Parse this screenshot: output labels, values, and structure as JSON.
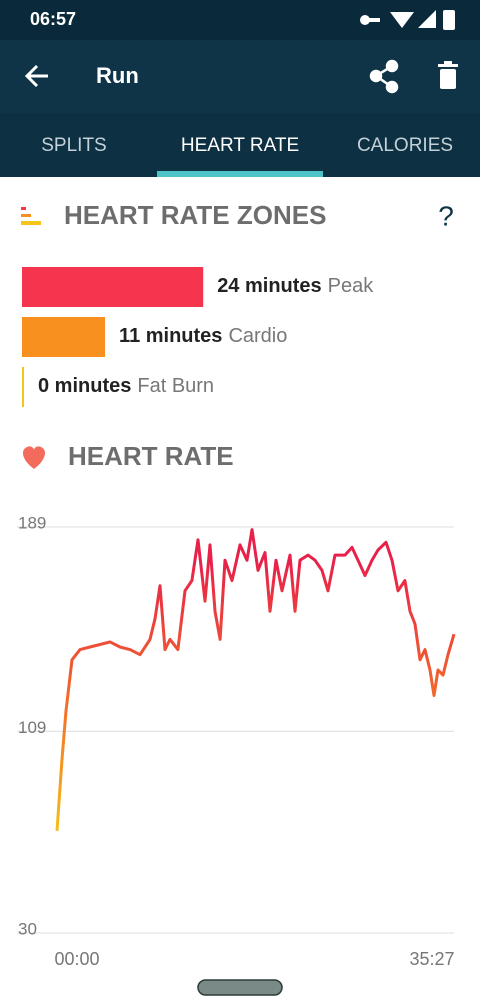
{
  "status_bar": {
    "time": "06:57"
  },
  "app_bar": {
    "title": "Run"
  },
  "tabs": [
    "SPLITS",
    "HEART RATE",
    "CALORIES"
  ],
  "zones": {
    "title": "HEART RATE ZONES",
    "help": "?",
    "items": [
      {
        "minutes": 24,
        "minutes_label": "24 minutes",
        "name": "Peak",
        "color": "#f5344e"
      },
      {
        "minutes": 11,
        "minutes_label": "11 minutes",
        "name": "Cardio",
        "color": "#f7901e"
      },
      {
        "minutes": 0,
        "minutes_label": "0 minutes",
        "name": "Fat Burn",
        "color": "#f5c518"
      }
    ]
  },
  "chart_data": {
    "type": "line",
    "title": "HEART RATE",
    "x": [
      0,
      0.45,
      0.8,
      1.34,
      2.05,
      2.95,
      3.84,
      4.73,
      5.63,
      6.52,
      7.41,
      8.3,
      8.75,
      9.2,
      9.64,
      10.09,
      10.8,
      11.43,
      12.05,
      12.59,
      13.22,
      13.66,
      14.11,
      14.56,
      15.0,
      15.63,
      16.34,
      16.97,
      17.41,
      17.95,
      18.57,
      19.02,
      19.56,
      20.09,
      20.81,
      21.25,
      21.7,
      22.41,
      23.04,
      23.66,
      24.2,
      24.82,
      25.72,
      26.34,
      26.88,
      27.5,
      28.13,
      28.66,
      29.38,
      29.91,
      30.45,
      31.07,
      31.52,
      31.97,
      32.41,
      32.86,
      33.31,
      33.66,
      34.02,
      34.47,
      34.91,
      35.45
    ],
    "values": [
      70,
      98,
      117,
      137,
      141,
      142,
      143,
      144,
      142,
      141,
      139,
      145,
      153,
      166,
      141,
      145,
      141,
      164,
      168,
      184,
      160,
      182,
      156,
      145,
      176,
      168,
      182,
      176,
      188,
      172,
      179,
      156,
      176,
      164,
      178,
      156,
      176,
      178,
      176,
      172,
      164,
      178,
      178,
      181,
      176,
      170,
      176,
      180,
      183,
      176,
      164,
      168,
      156,
      151,
      137,
      141,
      133,
      123,
      133,
      131,
      139,
      147
    ],
    "colors": [
      "#f5c518",
      "#f26b2a",
      "#e8204a"
    ],
    "xlim": [
      0,
      35.45
    ],
    "xticks": [
      {
        "value": 0,
        "label": "00:00"
      },
      {
        "value": 35.45,
        "label": "35:27"
      }
    ],
    "ylim": [
      30,
      189
    ],
    "yticks": [
      30,
      109,
      189
    ],
    "grid": true
  }
}
